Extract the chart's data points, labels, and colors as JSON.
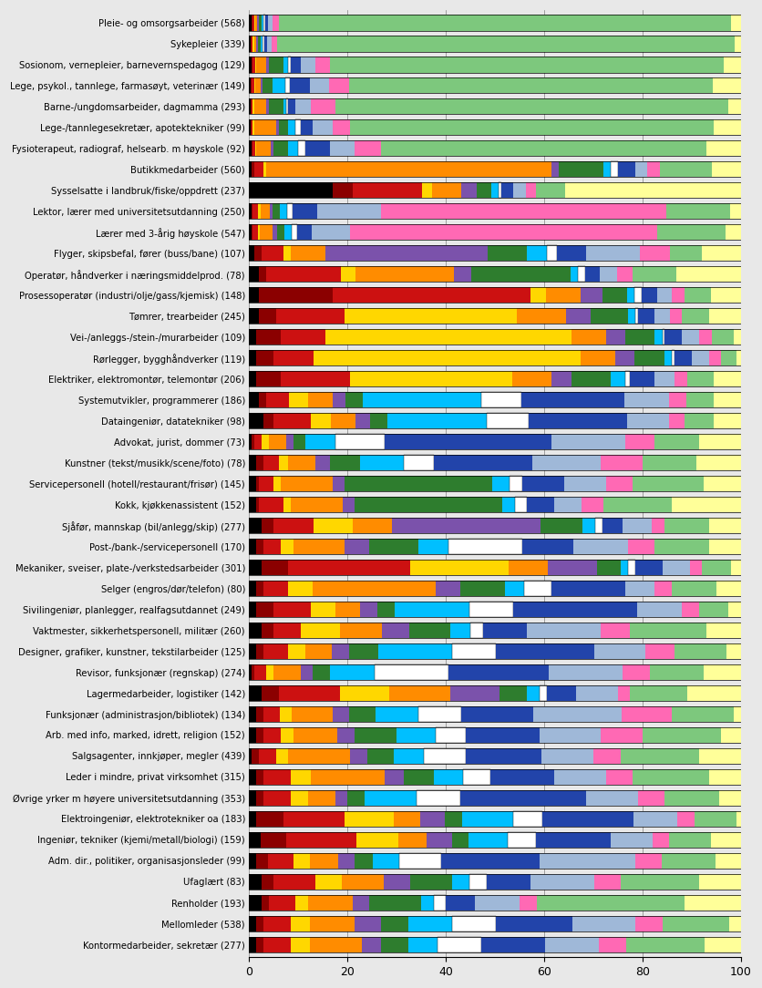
{
  "categories": [
    "Pleie- og omsorgsarbeider (568)",
    "Sykepleier (339)",
    "Sosionom, vernepleier, barnevernspedagog (129)",
    "Lege, psykol., tannlege, farmasøyt, veterinær (149)",
    "Barne-/ungdomsarbeider, dagmamma (293)",
    "Lege-/tannlegesekretær, apotektekniker (99)",
    "Fysioterapeut, radiograf, helsearb. m høyskole (92)",
    "Butikkmedarbeider (560)",
    "Sysselsatte i landbruk/fiske/oppdrett (237)",
    "Lektor, lærer med universitetsutdanning (250)",
    "Lærer med 3-årig høyskole (547)",
    "Flyger, skipsbefal, fører (buss/bane) (107)",
    "Operatør, håndverker i næringsmiddelprod. (78)",
    "Prosessoperatør (industri/olje/gass/kjemisk) (148)",
    "Tømrer, trearbeider (245)",
    "Vei-/anleggs-/stein-/murarbeider (109)",
    "Rørlegger, bygghåndverker (119)",
    "Elektriker, elektromontør, telemontør (206)",
    "Systemutvikler, programmerer (186)",
    "Dataingeniør, datatekniker (98)",
    "Advokat, jurist, dommer (73)",
    "Kunstner (tekst/musikk/scene/foto) (78)",
    "Servicepersonell (hotell/restaurant/frisør) (145)",
    "Kokk, kjøkkenassistent (152)",
    "Sjåfør, mannskap (bil/anlegg/skip) (277)",
    "Post-/bank-/servicepersonell (170)",
    "Mekaniker, sveiser, plate-/verkstedsarbeider (301)",
    "Selger (engros/dør/telefon) (80)",
    "Sivilingeniør, planlegger, realfagsutdannet (249)",
    "Vaktmester, sikkerhetspersonell, militær (260)",
    "Designer, grafiker, kunstner, tekstilarbeider (125)",
    "Revisor, funksjonær (regnskap) (274)",
    "Lagermedarbeider, logistiker (142)",
    "Funksjonær (administrasjon/bibliotek) (134)",
    "Arb. med info, marked, idrett, religion (152)",
    "Salgsagenter, innkjøper, megler (439)",
    "Leder i mindre, privat virksomhet (315)",
    "Øvrige yrker m høyere universitetsutdanning (353)",
    "Elektroingeniør, elektrotekniker oa (183)",
    "Ingeniør, tekniker (kjemi/metall/biologi) (159)",
    "Adm. dir., politiker, organisasjonsleder (99)",
    "Ufaglært (83)",
    "Renholder (193)",
    "Mellomleder (538)",
    "Kontormedarbeider, sekretær (277)"
  ],
  "sector_colors": [
    "#000000",
    "#8B0000",
    "#CC1111",
    "#FFD700",
    "#FF8C00",
    "#7B52AB",
    "#2E7D2E",
    "#00BFFF",
    "#FFFFFF",
    "#2244AA",
    "#9FB8D8",
    "#FF69B4",
    "#7DC87D",
    "#FFFF99"
  ],
  "bar_data": [
    [
      0.5,
      0.2,
      0.3,
      0.2,
      0.5,
      0.3,
      0.5,
      0.5,
      0.3,
      0.5,
      1.0,
      1.2,
      92.0,
      2.0
    ],
    [
      0.3,
      0.2,
      0.3,
      0.2,
      0.5,
      0.3,
      0.5,
      0.5,
      0.3,
      0.5,
      1.0,
      1.2,
      93.0,
      1.2
    ],
    [
      0.5,
      0.3,
      0.5,
      0.2,
      2.0,
      0.5,
      3.0,
      1.0,
      0.5,
      2.0,
      3.0,
      3.0,
      80.0,
      3.5
    ],
    [
      0.3,
      0.3,
      0.5,
      0.2,
      1.0,
      0.5,
      2.0,
      2.5,
      1.0,
      4.0,
      4.0,
      4.0,
      74.0,
      5.7
    ],
    [
      0.3,
      0.2,
      0.3,
      0.2,
      2.5,
      0.5,
      3.0,
      0.5,
      0.5,
      1.5,
      3.0,
      5.0,
      80.0,
      2.5
    ],
    [
      0.3,
      0.2,
      0.3,
      0.2,
      4.5,
      0.5,
      2.0,
      1.5,
      1.0,
      2.5,
      4.0,
      3.5,
      74.0,
      5.5
    ],
    [
      0.5,
      0.3,
      0.5,
      0.2,
      3.0,
      0.5,
      3.0,
      2.0,
      1.5,
      5.0,
      5.0,
      5.5,
      66.5,
      7.0
    ],
    [
      0.5,
      0.5,
      2.0,
      0.5,
      58.0,
      1.5,
      9.0,
      1.5,
      1.5,
      3.5,
      2.5,
      2.5,
      10.5,
      6.0
    ],
    [
      17.0,
      4.0,
      14.0,
      2.0,
      6.0,
      3.0,
      3.0,
      1.5,
      0.5,
      2.5,
      2.5,
      2.0,
      6.0,
      35.5
    ],
    [
      0.5,
      0.3,
      1.0,
      0.5,
      2.0,
      0.5,
      1.5,
      1.5,
      1.0,
      5.0,
      13.0,
      58.0,
      13.0,
      2.2
    ],
    [
      0.5,
      0.3,
      1.0,
      0.5,
      2.5,
      1.0,
      1.5,
      1.5,
      1.0,
      3.0,
      8.0,
      63.0,
      14.0,
      3.2
    ],
    [
      1.0,
      1.5,
      4.5,
      1.5,
      7.0,
      33.0,
      8.0,
      4.0,
      2.0,
      6.0,
      11.0,
      6.0,
      6.5,
      8.0
    ],
    [
      2.0,
      1.5,
      15.0,
      3.0,
      20.0,
      3.5,
      20.0,
      1.5,
      1.5,
      3.0,
      3.5,
      3.0,
      9.0,
      13.0
    ],
    [
      2.0,
      15.0,
      40.0,
      3.0,
      7.0,
      4.5,
      5.0,
      1.5,
      1.5,
      3.0,
      3.0,
      2.5,
      5.5,
      6.0
    ],
    [
      2.0,
      3.5,
      14.0,
      35.0,
      10.0,
      5.0,
      7.5,
      1.5,
      0.5,
      3.5,
      3.0,
      2.5,
      5.5,
      6.5
    ],
    [
      1.5,
      5.0,
      9.0,
      50.0,
      7.0,
      4.0,
      6.0,
      1.5,
      0.5,
      3.5,
      3.5,
      2.5,
      4.5,
      1.5
    ],
    [
      1.5,
      3.5,
      8.0,
      54.0,
      7.0,
      4.0,
      6.0,
      1.5,
      0.5,
      3.5,
      3.5,
      2.5,
      3.0,
      1.0
    ],
    [
      1.5,
      5.0,
      14.0,
      33.0,
      8.0,
      4.0,
      8.0,
      3.0,
      1.0,
      5.0,
      4.0,
      2.5,
      5.5,
      5.5
    ],
    [
      2.0,
      1.5,
      4.5,
      4.0,
      5.0,
      2.5,
      3.5,
      24.0,
      8.0,
      21.0,
      9.0,
      3.5,
      5.5,
      5.5
    ],
    [
      3.0,
      2.0,
      7.5,
      4.0,
      5.0,
      3.0,
      3.5,
      20.0,
      8.5,
      20.0,
      8.5,
      3.0,
      6.0,
      5.5
    ],
    [
      0.5,
      0.5,
      1.5,
      1.5,
      3.5,
      1.5,
      2.5,
      6.0,
      10.0,
      34.0,
      15.0,
      6.0,
      9.0,
      8.5
    ],
    [
      1.5,
      1.5,
      3.0,
      2.0,
      5.5,
      3.0,
      6.0,
      9.0,
      6.0,
      20.0,
      14.0,
      8.5,
      11.0,
      9.0
    ],
    [
      1.5,
      0.5,
      3.0,
      1.5,
      10.5,
      2.5,
      30.0,
      3.5,
      2.5,
      8.5,
      8.5,
      5.5,
      14.5,
      7.5
    ],
    [
      1.5,
      0.5,
      5.0,
      1.5,
      10.5,
      2.5,
      30.0,
      2.5,
      2.5,
      5.5,
      5.5,
      4.5,
      14.0,
      14.0
    ],
    [
      2.5,
      2.5,
      8.0,
      8.0,
      8.0,
      30.0,
      8.5,
      2.5,
      1.5,
      4.0,
      6.0,
      2.5,
      9.0,
      6.5
    ],
    [
      1.5,
      1.5,
      3.5,
      2.5,
      10.5,
      5.0,
      10.0,
      6.0,
      15.0,
      10.5,
      11.0,
      5.5,
      11.0,
      6.5
    ],
    [
      2.5,
      5.5,
      25.0,
      20.0,
      8.0,
      10.0,
      5.0,
      1.5,
      1.5,
      5.5,
      5.5,
      2.5,
      6.0,
      2.0
    ],
    [
      1.5,
      1.5,
      5.0,
      5.0,
      25.0,
      5.0,
      9.0,
      4.0,
      5.5,
      15.0,
      6.0,
      3.5,
      9.0,
      5.0
    ],
    [
      1.5,
      3.5,
      7.5,
      5.0,
      5.0,
      3.5,
      3.5,
      15.0,
      9.0,
      25.0,
      9.0,
      3.5,
      6.0,
      2.5
    ],
    [
      2.5,
      2.5,
      5.5,
      8.0,
      8.5,
      5.5,
      8.5,
      4.0,
      2.5,
      9.0,
      15.0,
      6.0,
      15.5,
      7.0
    ],
    [
      1.5,
      1.5,
      5.0,
      3.5,
      5.5,
      3.5,
      6.0,
      15.0,
      9.0,
      20.0,
      10.5,
      6.0,
      10.5,
      3.0
    ],
    [
      0.5,
      0.5,
      2.5,
      1.5,
      5.5,
      2.5,
      3.5,
      9.0,
      15.0,
      20.5,
      15.0,
      5.5,
      11.0,
      7.5
    ],
    [
      2.5,
      3.5,
      12.5,
      10.0,
      12.5,
      10.0,
      5.5,
      2.5,
      1.5,
      6.0,
      8.5,
      2.5,
      11.5,
      11.0
    ],
    [
      1.5,
      1.5,
      3.5,
      2.5,
      8.5,
      3.5,
      5.5,
      9.0,
      9.0,
      15.0,
      18.5,
      10.5,
      13.0,
      1.5
    ],
    [
      1.5,
      1.5,
      3.5,
      2.5,
      9.0,
      3.5,
      8.5,
      8.0,
      6.0,
      15.0,
      12.5,
      8.5,
      16.0,
      4.0
    ],
    [
      0.5,
      1.5,
      3.5,
      2.5,
      12.5,
      3.5,
      5.5,
      6.0,
      8.5,
      15.5,
      10.5,
      5.5,
      16.0,
      8.5
    ],
    [
      1.5,
      1.5,
      5.5,
      4.0,
      15.0,
      4.0,
      6.0,
      6.0,
      5.5,
      13.0,
      10.5,
      5.5,
      15.5,
      6.5
    ],
    [
      1.5,
      1.5,
      5.5,
      3.5,
      5.5,
      2.5,
      3.5,
      10.5,
      9.0,
      25.5,
      10.5,
      5.5,
      11.0,
      4.5
    ],
    [
      1.5,
      5.5,
      12.5,
      10.0,
      5.5,
      5.0,
      3.5,
      10.5,
      6.0,
      18.5,
      9.0,
      3.5,
      8.5,
      1.0
    ],
    [
      2.5,
      5.5,
      15.0,
      9.0,
      6.0,
      5.5,
      3.5,
      8.5,
      6.0,
      16.0,
      9.0,
      3.5,
      9.0,
      6.5
    ],
    [
      1.5,
      2.5,
      5.5,
      3.5,
      6.0,
      3.5,
      4.0,
      5.5,
      9.0,
      21.0,
      20.5,
      5.5,
      11.5,
      5.5
    ],
    [
      2.5,
      2.5,
      8.5,
      5.5,
      8.5,
      5.5,
      8.5,
      3.5,
      3.5,
      9.0,
      13.0,
      5.5,
      16.0,
      8.5
    ],
    [
      2.5,
      1.5,
      5.5,
      2.5,
      9.0,
      3.5,
      10.5,
      2.5,
      2.5,
      6.0,
      9.0,
      3.5,
      30.0,
      11.5
    ],
    [
      1.5,
      1.5,
      5.5,
      4.0,
      9.0,
      5.5,
      5.5,
      9.0,
      9.0,
      15.5,
      13.0,
      5.5,
      13.5,
      2.5
    ],
    [
      1.5,
      1.5,
      5.5,
      4.0,
      10.5,
      4.0,
      5.5,
      6.0,
      9.0,
      13.0,
      11.0,
      5.5,
      16.0,
      7.5
    ]
  ],
  "xlim": [
    0,
    100
  ],
  "xticks": [
    0,
    20,
    40,
    60,
    80,
    100
  ],
  "figsize": [
    8.36,
    10.84
  ],
  "dpi": 100,
  "background_color": "#e8e8e8",
  "bar_height": 0.75
}
